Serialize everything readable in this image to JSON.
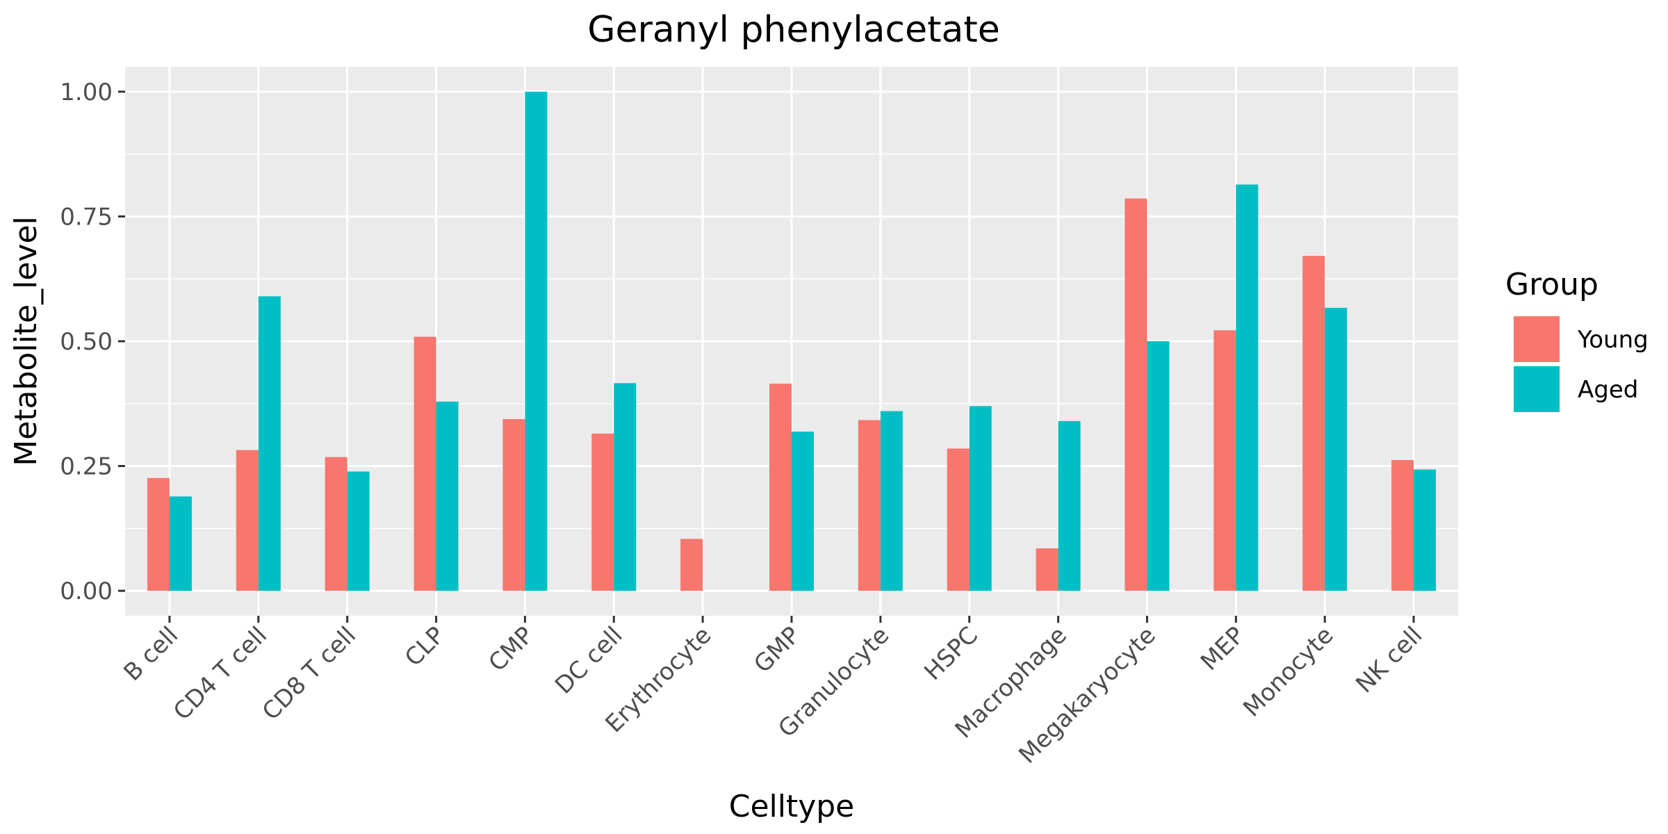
{
  "chart_data": {
    "type": "bar",
    "title": "Geranyl phenylacetate",
    "xlabel": "Celltype",
    "ylabel": "Metabolite_level",
    "ylim": [
      -0.05,
      1.05
    ],
    "yticks": [
      0.0,
      0.25,
      0.5,
      0.75,
      1.0
    ],
    "ytick_labels": [
      "0.00",
      "0.25",
      "0.50",
      "0.75",
      "1.00"
    ],
    "grid": true,
    "categories": [
      "B cell",
      "CD4 T cell",
      "CD8 T cell",
      "CLP",
      "CMP",
      "DC cell",
      "Erythrocyte",
      "GMP",
      "Granulocyte",
      "HSPC",
      "Macrophage",
      "Megakaryocyte",
      "MEP",
      "Monocyte",
      "NK cell"
    ],
    "series": [
      {
        "name": "Young",
        "color": "#F8766D",
        "values": [
          0.226,
          0.282,
          0.268,
          0.509,
          0.344,
          0.315,
          0.104,
          0.415,
          0.342,
          0.285,
          0.085,
          0.786,
          0.522,
          0.671,
          0.262
        ]
      },
      {
        "name": "Aged",
        "color": "#00BFC4",
        "values": [
          0.189,
          0.59,
          0.239,
          0.379,
          1.0,
          0.416,
          0.0,
          0.319,
          0.36,
          0.37,
          0.34,
          0.5,
          0.814,
          0.567,
          0.243
        ]
      }
    ],
    "legend": {
      "title": "Group",
      "position": "right"
    }
  }
}
